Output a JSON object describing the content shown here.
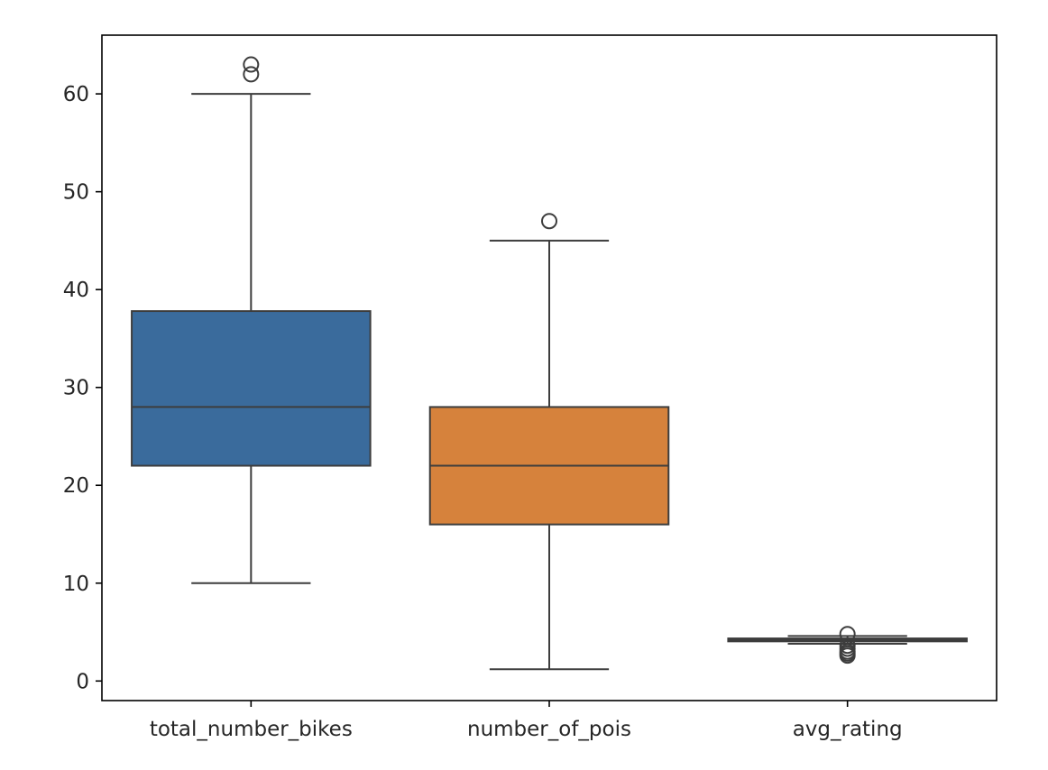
{
  "chart_data": {
    "type": "box",
    "title": "",
    "xlabel": "",
    "ylabel": "",
    "ylim": [
      -2,
      66
    ],
    "yticks": [
      0,
      10,
      20,
      30,
      40,
      50,
      60
    ],
    "ytick_labels": [
      "0",
      "10",
      "20",
      "30",
      "40",
      "50",
      "60"
    ],
    "grid": false,
    "categories": [
      "total_number_bikes",
      "number_of_pois",
      "avg_rating"
    ],
    "boxes": [
      {
        "category": "total_number_bikes",
        "whisker_low": 10,
        "q1": 22,
        "median": 28,
        "q3": 37.8,
        "whisker_high": 60,
        "outliers": [
          62,
          63
        ],
        "color": "#3a6b9c"
      },
      {
        "category": "number_of_pois",
        "whisker_low": 1.2,
        "q1": 16,
        "median": 22,
        "q3": 28,
        "whisker_high": 45,
        "outliers": [
          47
        ],
        "color": "#d6823c"
      },
      {
        "category": "avg_rating",
        "whisker_low": 3.8,
        "q1": 4.05,
        "median": 4.2,
        "q3": 4.35,
        "whisker_high": 4.6,
        "outliers": [
          4.8,
          3.6,
          3.3,
          3.0,
          2.8,
          2.6
        ],
        "color": "#4f9a4f"
      }
    ],
    "line_color": "#3d3d3d"
  }
}
